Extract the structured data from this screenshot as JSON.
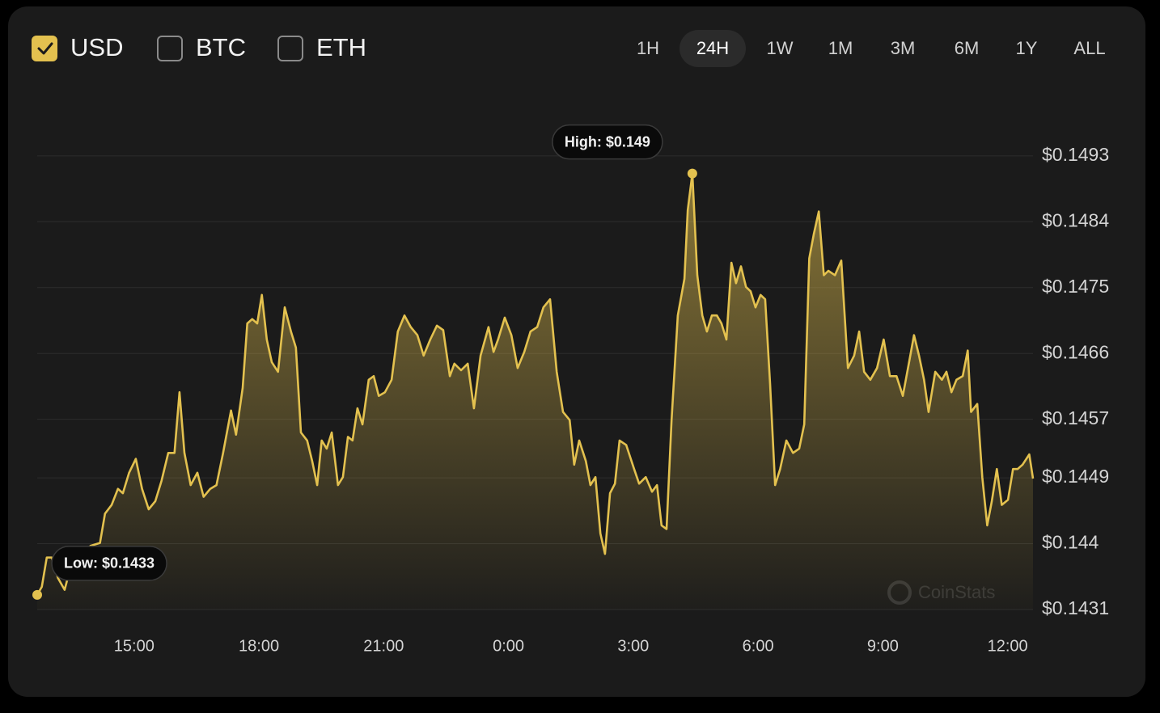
{
  "currency_toggles": [
    {
      "label": "USD",
      "checked": true
    },
    {
      "label": "BTC",
      "checked": false
    },
    {
      "label": "ETH",
      "checked": false
    }
  ],
  "time_ranges": [
    {
      "label": "1H",
      "selected": false
    },
    {
      "label": "24H",
      "selected": true
    },
    {
      "label": "1W",
      "selected": false
    },
    {
      "label": "1M",
      "selected": false
    },
    {
      "label": "3M",
      "selected": false
    },
    {
      "label": "6M",
      "selected": false
    },
    {
      "label": "1Y",
      "selected": false
    },
    {
      "label": "ALL",
      "selected": false
    }
  ],
  "chart_data": {
    "type": "area",
    "color": "#e3c14f",
    "grid": true,
    "watermark": "CoinStats",
    "annotations": {
      "high": "High: $0.149",
      "low": "Low: $0.1433"
    },
    "xlim": [
      12.67,
      36.61
    ],
    "xticks": [
      {
        "value": 15,
        "label": "15:00"
      },
      {
        "value": 18,
        "label": "18:00"
      },
      {
        "value": 21,
        "label": "21:00"
      },
      {
        "value": 24,
        "label": "0:00"
      },
      {
        "value": 27,
        "label": "3:00"
      },
      {
        "value": 30,
        "label": "6:00"
      },
      {
        "value": 33,
        "label": "9:00"
      },
      {
        "value": 36,
        "label": "12:00"
      }
    ],
    "ylim": [
      0.1431,
      0.15
    ],
    "yticks": [
      {
        "value": 0.1493,
        "label": "$0.1493"
      },
      {
        "value": 0.1484,
        "label": "$0.1484"
      },
      {
        "value": 0.1475,
        "label": "$0.1475"
      },
      {
        "value": 0.1466,
        "label": "$0.1466"
      },
      {
        "value": 0.1457,
        "label": "$0.1457"
      },
      {
        "value": 0.1449,
        "label": "$0.1449"
      },
      {
        "value": 0.144,
        "label": "$0.144"
      },
      {
        "value": 0.1431,
        "label": "$0.1431"
      }
    ],
    "x": [
      12.67,
      12.78,
      12.9,
      13.02,
      13.17,
      13.33,
      13.48,
      13.72,
      13.95,
      14.18,
      14.3,
      14.46,
      14.61,
      14.73,
      14.88,
      15.04,
      15.19,
      15.35,
      15.51,
      15.66,
      15.82,
      15.97,
      16.09,
      16.21,
      16.36,
      16.52,
      16.67,
      16.83,
      16.98,
      17.14,
      17.33,
      17.45,
      17.61,
      17.72,
      17.84,
      17.96,
      18.07,
      18.19,
      18.31,
      18.46,
      18.62,
      18.77,
      18.89,
      19.01,
      19.16,
      19.28,
      19.4,
      19.51,
      19.63,
      19.75,
      19.9,
      20.02,
      20.14,
      20.25,
      20.37,
      20.49,
      20.64,
      20.76,
      20.88,
      21.03,
      21.19,
      21.34,
      21.5,
      21.65,
      21.81,
      21.96,
      22.12,
      22.28,
      22.43,
      22.59,
      22.7,
      22.86,
      23.02,
      23.17,
      23.33,
      23.52,
      23.64,
      23.75,
      23.91,
      24.07,
      24.22,
      24.38,
      24.53,
      24.69,
      24.84,
      25.0,
      25.16,
      25.31,
      25.47,
      25.58,
      25.7,
      25.86,
      25.97,
      26.09,
      26.21,
      26.32,
      26.44,
      26.56,
      26.67,
      26.83,
      27.02,
      27.14,
      27.3,
      27.45,
      27.57,
      27.68,
      27.8,
      27.92,
      28.07,
      28.23,
      28.31,
      28.42,
      28.54,
      28.66,
      28.77,
      28.89,
      29.01,
      29.12,
      29.24,
      29.36,
      29.47,
      29.59,
      29.71,
      29.82,
      29.94,
      30.06,
      30.17,
      30.29,
      30.41,
      30.53,
      30.68,
      30.84,
      30.99,
      31.11,
      31.23,
      31.34,
      31.46,
      31.58,
      31.69,
      31.85,
      32.0,
      32.16,
      32.31,
      32.43,
      32.55,
      32.7,
      32.86,
      33.02,
      33.17,
      33.33,
      33.48,
      33.64,
      33.75,
      33.87,
      33.99,
      34.1,
      34.26,
      34.42,
      34.53,
      34.65,
      34.77,
      34.92,
      35.04,
      35.12,
      35.27,
      35.39,
      35.51,
      35.62,
      35.74,
      35.86,
      36.01,
      36.13,
      36.24,
      36.36,
      36.52,
      36.61
    ],
    "values": [
      0.1433,
      0.14341,
      0.14381,
      0.14381,
      0.14353,
      0.14337,
      0.1437,
      0.14381,
      0.14397,
      0.14401,
      0.14441,
      0.14453,
      0.14475,
      0.14469,
      0.14497,
      0.14516,
      0.14475,
      0.14447,
      0.14458,
      0.14486,
      0.14524,
      0.14524,
      0.14607,
      0.14524,
      0.1448,
      0.14497,
      0.14464,
      0.14475,
      0.1448,
      0.14524,
      0.14582,
      0.14549,
      0.14613,
      0.14701,
      0.14707,
      0.14701,
      0.1474,
      0.14679,
      0.14648,
      0.14635,
      0.14723,
      0.1469,
      0.14668,
      0.14552,
      0.14541,
      0.14513,
      0.1448,
      0.14541,
      0.1453,
      0.14552,
      0.1448,
      0.14491,
      0.14546,
      0.14541,
      0.14585,
      0.14563,
      0.14624,
      0.14629,
      0.14602,
      0.14607,
      0.14624,
      0.1469,
      0.14712,
      0.14696,
      0.14685,
      0.14657,
      0.14679,
      0.14698,
      0.14692,
      0.14629,
      0.14646,
      0.14637,
      0.14646,
      0.14585,
      0.14657,
      0.14696,
      0.14662,
      0.14679,
      0.14709,
      0.14685,
      0.1464,
      0.14662,
      0.1469,
      0.14696,
      0.14723,
      0.14734,
      0.14635,
      0.1458,
      0.14569,
      0.14508,
      0.14541,
      0.14513,
      0.1448,
      0.14491,
      0.14414,
      0.14386,
      0.14469,
      0.14482,
      0.14541,
      0.14535,
      0.14502,
      0.14482,
      0.14491,
      0.14471,
      0.1448,
      0.14425,
      0.1442,
      0.14569,
      0.14712,
      0.14762,
      0.14856,
      0.14906,
      0.14767,
      0.14712,
      0.1469,
      0.14712,
      0.14712,
      0.14701,
      0.14679,
      0.14784,
      0.14756,
      0.14779,
      0.14751,
      0.14745,
      0.14723,
      0.1474,
      0.14734,
      0.14618,
      0.1448,
      0.14502,
      0.14541,
      0.14524,
      0.1453,
      0.14563,
      0.1479,
      0.14823,
      0.14854,
      0.14767,
      0.14773,
      0.14767,
      0.14787,
      0.1464,
      0.14657,
      0.1469,
      0.14635,
      0.14624,
      0.1464,
      0.14679,
      0.14629,
      0.14629,
      0.14602,
      0.14651,
      0.14685,
      0.14657,
      0.14624,
      0.1458,
      0.14635,
      0.14624,
      0.14635,
      0.14607,
      0.14624,
      0.14629,
      0.14664,
      0.1458,
      0.14591,
      0.14491,
      0.14425,
      0.14458,
      0.14502,
      0.14453,
      0.1446,
      0.14502,
      0.14502,
      0.14508,
      0.14522,
      0.14489
    ]
  }
}
